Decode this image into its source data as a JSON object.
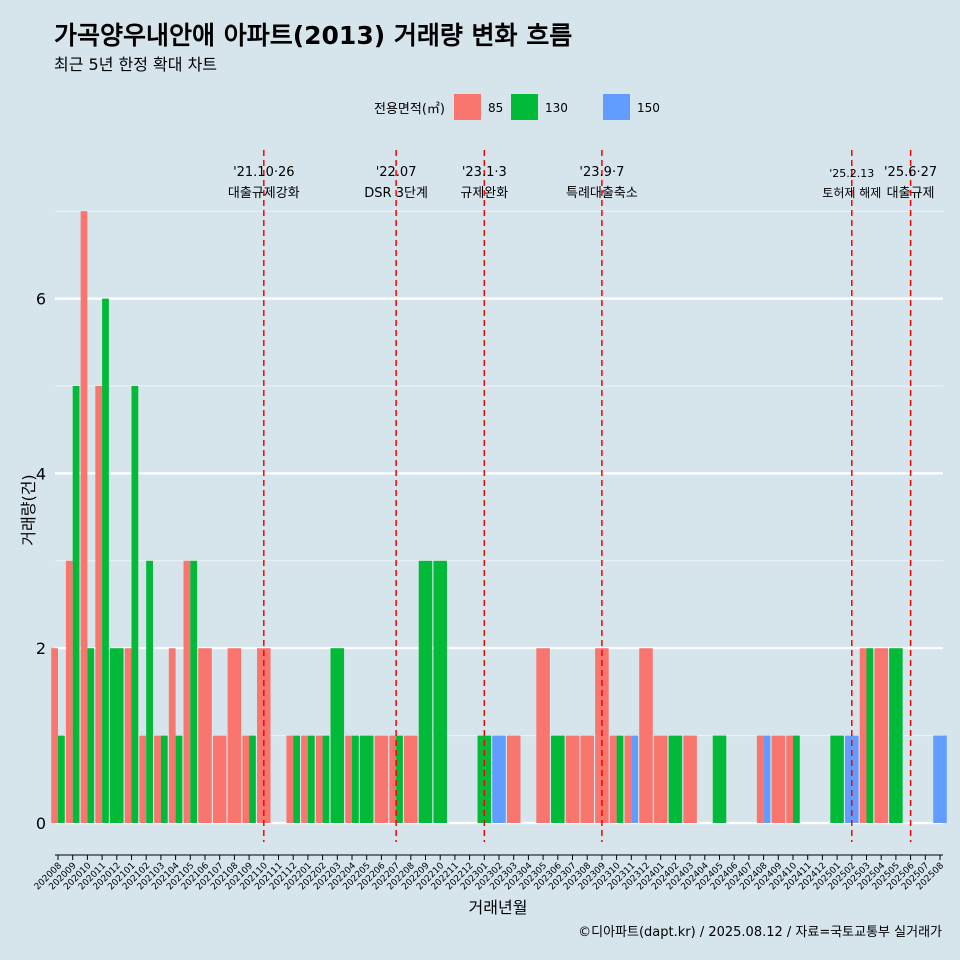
{
  "colors": {
    "background": "#d6e4ec",
    "gridline": "#ffffff",
    "event_line": "#ff0000",
    "series_85": "#f8766d",
    "series_130": "#00ba38",
    "series_150": "#619cff"
  },
  "chart_data": {
    "type": "bar",
    "title": "가곡양우내안애 아파트(2013) 거래량 변화 흐름",
    "subtitle": "최근 5년 한정 확대 차트",
    "xlabel": "거래년월",
    "ylabel": "거래량(건)",
    "caption": "©디아파트(dapt.kr) / 2025.08.12 / 자료=국토교통부 실거래가",
    "legend_title": "전용면적(㎡)",
    "legend_position": "top",
    "ylim": [
      0,
      7.5
    ],
    "y_ticks": [
      0,
      2,
      4,
      6
    ],
    "grid": "horizontal",
    "categories": [
      "202008",
      "202009",
      "202010",
      "202011",
      "202012",
      "202101",
      "202102",
      "202103",
      "202104",
      "202105",
      "202106",
      "202107",
      "202108",
      "202109",
      "202110",
      "202111",
      "202112",
      "202201",
      "202202",
      "202203",
      "202204",
      "202205",
      "202206",
      "202207",
      "202208",
      "202209",
      "202210",
      "202211",
      "202212",
      "202301",
      "202302",
      "202303",
      "202304",
      "202305",
      "202306",
      "202307",
      "202308",
      "202309",
      "202310",
      "202311",
      "202312",
      "202401",
      "202402",
      "202403",
      "202404",
      "202405",
      "202406",
      "202407",
      "202408",
      "202409",
      "202410",
      "202411",
      "202412",
      "202501",
      "202502",
      "202503",
      "202504",
      "202505",
      "202506",
      "202507",
      "202508"
    ],
    "series": [
      {
        "name": "85",
        "values": [
          2,
          3,
          7,
          5,
          0,
          2,
          1,
          1,
          2,
          3,
          2,
          1,
          2,
          1,
          2,
          0,
          1,
          1,
          1,
          0,
          1,
          0,
          1,
          1,
          1,
          0,
          0,
          0,
          0,
          0,
          0,
          1,
          0,
          2,
          0,
          1,
          1,
          2,
          1,
          1,
          2,
          1,
          0,
          1,
          0,
          0,
          0,
          0,
          1,
          1,
          1,
          0,
          0,
          0,
          0,
          2,
          2,
          0,
          0,
          0,
          0
        ]
      },
      {
        "name": "130",
        "values": [
          1,
          5,
          2,
          6,
          2,
          5,
          3,
          1,
          1,
          3,
          0,
          0,
          0,
          1,
          0,
          0,
          1,
          1,
          1,
          2,
          1,
          1,
          0,
          1,
          0,
          3,
          3,
          0,
          0,
          1,
          0,
          0,
          0,
          0,
          1,
          0,
          0,
          0,
          1,
          0,
          0,
          0,
          1,
          0,
          0,
          1,
          0,
          0,
          0,
          0,
          1,
          0,
          0,
          1,
          0,
          2,
          0,
          2,
          0,
          0,
          0
        ]
      },
      {
        "name": "150",
        "values": [
          0,
          0,
          0,
          0,
          0,
          0,
          0,
          0,
          0,
          0,
          0,
          0,
          0,
          0,
          0,
          0,
          0,
          0,
          0,
          0,
          0,
          0,
          0,
          0,
          0,
          0,
          0,
          0,
          0,
          0,
          1,
          0,
          0,
          0,
          0,
          0,
          0,
          0,
          0,
          1,
          0,
          0,
          0,
          0,
          0,
          0,
          0,
          0,
          1,
          0,
          0,
          0,
          0,
          0,
          1,
          0,
          0,
          0,
          0,
          0,
          1
        ]
      }
    ],
    "events": [
      {
        "date": "'21.10·26",
        "label": "대출규제강화",
        "x": "202110"
      },
      {
        "date": "'22.07",
        "label": "DSR 3단계",
        "x": "202207"
      },
      {
        "date": "'23.1·3",
        "label": "규제완화",
        "x": "202301"
      },
      {
        "date": "'23.9·7",
        "label": "특례대출축소",
        "x": "202309"
      },
      {
        "date": "'25.2.13",
        "label": "토허제 해제",
        "x": "202502"
      },
      {
        "date": "'25.6·27",
        "label": "대출규제",
        "x": "202506"
      }
    ]
  }
}
